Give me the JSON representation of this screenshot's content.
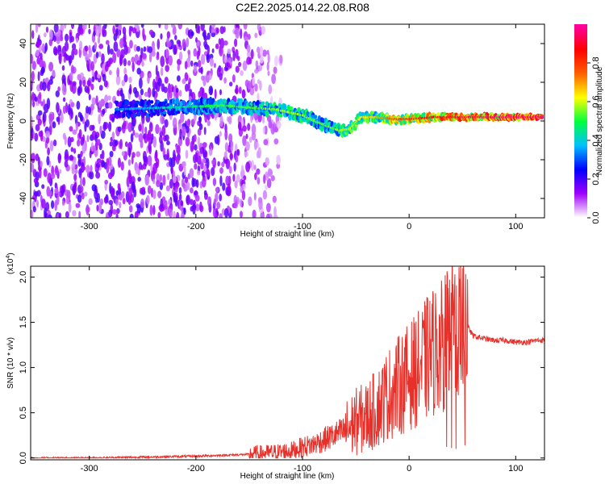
{
  "title": "C2E2.2025.014.22.08.R08",
  "chart_data": [
    {
      "type": "heatmap",
      "xlabel": "Height of straight line (km)",
      "ylabel": "Frequency (Hz)",
      "xlim": [
        -355,
        127
      ],
      "ylim": [
        -50,
        50
      ],
      "xticks": [
        -300,
        -200,
        -100,
        0,
        100
      ],
      "yticks": [
        -40,
        -20,
        0,
        20,
        40
      ],
      "colorbar": {
        "label": "Normalized spectral amplitude",
        "range": [
          0,
          1
        ],
        "ticks": [
          "0.0",
          "0.2",
          "0.4",
          "0.6",
          "0.8"
        ],
        "tick_values": [
          0,
          0.2,
          0.4,
          0.6,
          0.8
        ],
        "colors": [
          "#ffffff",
          "#a000ff",
          "#0000ff",
          "#00c0ff",
          "#00ff40",
          "#ffff00",
          "#ff6000",
          "#ff0000",
          "#ff00a0"
        ]
      },
      "noise_region": {
        "x_from": -355,
        "x_to": -120,
        "freq_from": -50,
        "freq_to": 50,
        "amplitude": [
          0.05,
          0.2
        ]
      },
      "ridge": [
        {
          "x": -275,
          "freq": 6,
          "amp": 0.25
        },
        {
          "x": -250,
          "freq": 6.5,
          "amp": 0.3
        },
        {
          "x": -225,
          "freq": 7,
          "amp": 0.35
        },
        {
          "x": -200,
          "freq": 7.5,
          "amp": 0.4
        },
        {
          "x": -175,
          "freq": 8,
          "amp": 0.45
        },
        {
          "x": -150,
          "freq": 7,
          "amp": 0.45
        },
        {
          "x": -125,
          "freq": 6,
          "amp": 0.5
        },
        {
          "x": -100,
          "freq": 3,
          "amp": 0.5
        },
        {
          "x": -80,
          "freq": -2,
          "amp": 0.45
        },
        {
          "x": -65,
          "freq": -5,
          "amp": 0.5
        },
        {
          "x": -55,
          "freq": -4,
          "amp": 0.55
        },
        {
          "x": -45,
          "freq": 2,
          "amp": 0.55
        },
        {
          "x": -30,
          "freq": 2,
          "amp": 0.6
        },
        {
          "x": -15,
          "freq": 1,
          "amp": 0.7
        },
        {
          "x": 0,
          "freq": 1,
          "amp": 0.75
        },
        {
          "x": 25,
          "freq": 2,
          "amp": 0.8
        },
        {
          "x": 50,
          "freq": 2,
          "amp": 0.85
        },
        {
          "x": 75,
          "freq": 2,
          "amp": 0.9
        },
        {
          "x": 100,
          "freq": 2,
          "amp": 0.95
        },
        {
          "x": 125,
          "freq": 2,
          "amp": 0.95
        }
      ]
    },
    {
      "type": "line",
      "xlabel": "Height of straight line (km)",
      "ylabel": "SNR (10 * v/v)",
      "y_multiplier": "(x10",
      "y_multiplier_exp": "4",
      "y_multiplier_close": ")",
      "xlim": [
        -355,
        127
      ],
      "ylim": [
        -0.02,
        2.12
      ],
      "xticks": [
        -300,
        -200,
        -100,
        0,
        100
      ],
      "yticks": [
        "0.0",
        "0.5",
        "1.0",
        "1.5",
        "2.0"
      ],
      "ytick_values": [
        0,
        0.5,
        1.0,
        1.5,
        2.0
      ],
      "series": [
        {
          "color": "#e8302a",
          "x": [
            -355,
            -300,
            -250,
            -200,
            -175,
            -150,
            -125,
            -110,
            -100,
            -90,
            -80,
            -70,
            -60,
            -50,
            -40,
            -30,
            -20,
            -10,
            0,
            10,
            20,
            30,
            40,
            50,
            55,
            60,
            70,
            80,
            90,
            100,
            110,
            120,
            127
          ],
          "y": [
            0.0,
            0.0,
            0.01,
            0.02,
            0.03,
            0.04,
            0.06,
            0.08,
            0.12,
            0.15,
            0.2,
            0.25,
            0.3,
            0.4,
            0.45,
            0.55,
            0.7,
            0.8,
            0.9,
            1.0,
            1.15,
            1.25,
            1.4,
            1.5,
            1.45,
            1.35,
            1.32,
            1.3,
            1.3,
            1.28,
            1.28,
            1.3,
            1.3
          ]
        }
      ]
    }
  ]
}
